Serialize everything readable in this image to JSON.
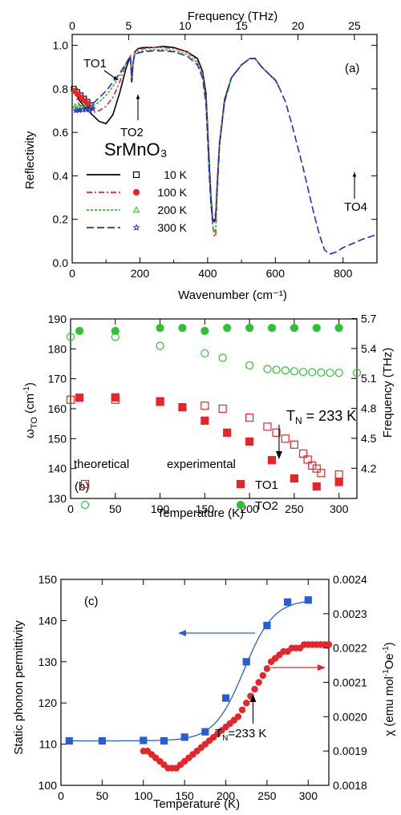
{
  "chart_data": [
    {
      "type": "line",
      "panel_label": "(a)",
      "xlabel": "Wavenumber (cm⁻¹)",
      "ylabel": "Reflectivity",
      "x2label": "Frequency (THz)",
      "xlim": [
        0,
        900
      ],
      "ylim": [
        0,
        1.05
      ],
      "x2lim": [
        0,
        27
      ],
      "xticks": [
        "0",
        "200",
        "400",
        "600",
        "800"
      ],
      "yticks": [
        "0.0",
        "0.2",
        "0.4",
        "0.6",
        "0.8",
        "1.0"
      ],
      "x2ticks": [
        "0",
        "5",
        "10",
        "15",
        "20",
        "25"
      ],
      "material": "SrMnO₃",
      "annotations": [
        "TO1",
        "TO2",
        "TO4"
      ],
      "legend_placement": "lower-left",
      "series": [
        {
          "name": "10 K",
          "color": "#000000",
          "marker": "open-square",
          "x": [
            5,
            20,
            40,
            60,
            80,
            100,
            120,
            140,
            160,
            172,
            176,
            180,
            185,
            195,
            210,
            240,
            270,
            300,
            340,
            370,
            385,
            395,
            400,
            405,
            410,
            415,
            420,
            424,
            428,
            435,
            450,
            470,
            500,
            525,
            540,
            560,
            580,
            600,
            610
          ],
          "y": [
            0.8,
            0.75,
            0.71,
            0.68,
            0.65,
            0.64,
            0.68,
            0.78,
            0.9,
            0.95,
            0.83,
            0.92,
            0.97,
            0.985,
            0.99,
            0.99,
            0.995,
            0.99,
            0.97,
            0.94,
            0.88,
            0.78,
            0.62,
            0.45,
            0.3,
            0.2,
            0.19,
            0.21,
            0.35,
            0.55,
            0.75,
            0.85,
            0.91,
            0.94,
            0.94,
            0.9,
            0.87,
            0.84,
            0.81
          ]
        },
        {
          "name": "100 K",
          "color": "#e8242a",
          "marker": "filled-circle",
          "x": [
            5,
            20,
            40,
            60,
            80,
            100,
            120,
            140,
            160,
            172,
            176,
            180,
            185,
            195,
            210,
            240,
            270,
            300,
            340,
            370,
            385,
            395,
            400,
            405,
            410,
            415,
            420,
            424,
            428,
            435,
            450,
            470,
            500,
            525,
            540,
            560,
            580,
            600,
            610
          ],
          "y": [
            0.79,
            0.73,
            0.7,
            0.69,
            0.7,
            0.72,
            0.76,
            0.83,
            0.92,
            0.95,
            0.85,
            0.92,
            0.97,
            0.98,
            0.985,
            0.99,
            0.99,
            0.985,
            0.97,
            0.93,
            0.87,
            0.76,
            0.6,
            0.43,
            0.28,
            0.18,
            0.12,
            0.13,
            0.3,
            0.53,
            0.74,
            0.85,
            0.91,
            0.94,
            0.94,
            0.9,
            0.87,
            0.84,
            0.81
          ]
        },
        {
          "name": "200 K",
          "color": "#2ec22e",
          "marker": "open-triangle",
          "x": [
            5,
            20,
            40,
            60,
            80,
            100,
            120,
            140,
            160,
            172,
            176,
            180,
            185,
            195,
            210,
            240,
            270,
            300,
            340,
            370,
            385,
            395,
            400,
            405,
            410,
            415,
            420,
            424,
            428,
            435,
            450,
            470,
            500,
            525,
            540,
            560,
            580,
            600,
            610
          ],
          "y": [
            0.72,
            0.71,
            0.71,
            0.72,
            0.74,
            0.77,
            0.81,
            0.86,
            0.92,
            0.95,
            0.85,
            0.92,
            0.96,
            0.97,
            0.975,
            0.98,
            0.98,
            0.975,
            0.96,
            0.92,
            0.86,
            0.74,
            0.58,
            0.4,
            0.26,
            0.17,
            0.14,
            0.16,
            0.32,
            0.54,
            0.74,
            0.85,
            0.91,
            0.94,
            0.94,
            0.9,
            0.87,
            0.84,
            0.81
          ]
        },
        {
          "name": "300 K",
          "color": "#2a2ad4",
          "marker": "open-star",
          "x": [
            5,
            20,
            40,
            60,
            80,
            100,
            120,
            140,
            160,
            172,
            176,
            180,
            185,
            195,
            210,
            240,
            270,
            300,
            340,
            370,
            385,
            395,
            400,
            405,
            410,
            415,
            420,
            424,
            428,
            435,
            450,
            470,
            500,
            525,
            540,
            560,
            580,
            600,
            610,
            630,
            650,
            680,
            710,
            730,
            745,
            760,
            780,
            800,
            830,
            860,
            900
          ],
          "y": [
            0.7,
            0.7,
            0.71,
            0.73,
            0.76,
            0.79,
            0.83,
            0.87,
            0.92,
            0.95,
            0.86,
            0.92,
            0.96,
            0.965,
            0.97,
            0.975,
            0.975,
            0.97,
            0.95,
            0.91,
            0.85,
            0.73,
            0.57,
            0.4,
            0.27,
            0.19,
            0.2,
            0.23,
            0.35,
            0.55,
            0.74,
            0.85,
            0.91,
            0.94,
            0.94,
            0.9,
            0.87,
            0.84,
            0.81,
            0.74,
            0.63,
            0.45,
            0.25,
            0.13,
            0.06,
            0.04,
            0.05,
            0.07,
            0.09,
            0.11,
            0.13
          ]
        }
      ]
    },
    {
      "type": "scatter",
      "panel_label": "(b)",
      "xlabel": "Temperature (K)",
      "ylabel": "ωTO (cm⁻¹)",
      "y2label": "Frequency (THz)",
      "xlim": [
        0,
        320
      ],
      "ylim": [
        130,
        190
      ],
      "xticks": [
        "0",
        "50",
        "100",
        "150",
        "200",
        "250",
        "300"
      ],
      "yticks": [
        "130",
        "140",
        "150",
        "160",
        "170",
        "180",
        "190"
      ],
      "y2ticks": [
        "4.2",
        "4.5",
        "4.8",
        "5.1",
        "5.4",
        "5.7"
      ],
      "annotation": "TN = 233 K",
      "legend_headers": [
        "theoretical",
        "experimental"
      ],
      "series": [
        {
          "name": "TO1",
          "kind": "experimental",
          "color": "#e8242a",
          "marker": "filled-square",
          "x": [
            10,
            50,
            100,
            125,
            150,
            175,
            200,
            225,
            250,
            275,
            300
          ],
          "y": [
            163.7,
            163.8,
            162.3,
            160.5,
            156,
            152,
            149,
            142.8,
            136.7,
            134,
            135.5
          ]
        },
        {
          "name": "TO2",
          "kind": "experimental",
          "color": "#2ec22e",
          "marker": "filled-circle",
          "x": [
            10,
            50,
            100,
            125,
            150,
            175,
            200,
            225,
            250,
            275,
            300
          ],
          "y": [
            186,
            186,
            187,
            187,
            186,
            187,
            187,
            187,
            187,
            187,
            187
          ]
        },
        {
          "name": "TO1",
          "kind": "theoretical",
          "color": "#e8242a",
          "marker": "open-square",
          "x": [
            0,
            50,
            100,
            150,
            170,
            200,
            220,
            230,
            240,
            250,
            260,
            265,
            270,
            275,
            280,
            300
          ],
          "y": [
            163,
            163,
            162.5,
            161,
            160,
            157,
            154,
            152,
            150,
            148,
            145,
            143,
            141,
            140,
            138.5,
            138
          ]
        },
        {
          "name": "TO2",
          "kind": "theoretical",
          "color": "#2ec22e",
          "marker": "open-circle",
          "x": [
            0,
            50,
            100,
            150,
            170,
            200,
            220,
            230,
            240,
            250,
            260,
            270,
            280,
            290,
            300,
            320
          ],
          "y": [
            184,
            184,
            181,
            178.5,
            177,
            174.5,
            173.3,
            173,
            172.8,
            172.5,
            172.3,
            172.2,
            172.1,
            172,
            172,
            172
          ]
        }
      ]
    },
    {
      "type": "scatter",
      "panel_label": "(c)",
      "xlabel": "Temperature (K)",
      "ylabel": "Static phonon permittivity",
      "y2label": "χ (emu mol⁻¹Oe⁻¹)",
      "xlim": [
        0,
        325
      ],
      "ylim": [
        100,
        150
      ],
      "y2lim": [
        0.0018,
        0.0024
      ],
      "xticks": [
        "0",
        "50",
        "100",
        "150",
        "200",
        "250",
        "300"
      ],
      "yticks": [
        "100",
        "110",
        "120",
        "130",
        "140",
        "150"
      ],
      "y2ticks": [
        "0.0018",
        "0.0019",
        "0.0020",
        "0.0021",
        "0.0022",
        "0.0023",
        "0.0024"
      ],
      "annotation": "TN=233 K",
      "series": [
        {
          "name": "permittivity",
          "axis": "left",
          "color": "#2a5cd6",
          "marker": "filled-square",
          "x": [
            10,
            50,
            100,
            125,
            150,
            175,
            200,
            225,
            250,
            275,
            300
          ],
          "y": [
            110.8,
            110.8,
            110.9,
            110.8,
            111.7,
            113,
            121.2,
            130,
            138.8,
            144.5,
            145
          ]
        },
        {
          "name": "susceptibility",
          "axis": "right",
          "color": "#e8242a",
          "marker": "filled-circle",
          "x": [
            100,
            105,
            110,
            115,
            120,
            125,
            130,
            135,
            140,
            145,
            150,
            155,
            160,
            165,
            170,
            175,
            180,
            185,
            190,
            195,
            200,
            205,
            210,
            215,
            220,
            225,
            230,
            235,
            240,
            245,
            250,
            255,
            260,
            265,
            270,
            275,
            280,
            285,
            290,
            295,
            300,
            305,
            310,
            315,
            320,
            325
          ],
          "y": [
            0.0019,
            0.0019,
            0.00189,
            0.00188,
            0.00187,
            0.00186,
            0.00185,
            0.00185,
            0.00185,
            0.00186,
            0.00187,
            0.00188,
            0.00189,
            0.0019,
            0.00191,
            0.00192,
            0.00193,
            0.00194,
            0.00195,
            0.00196,
            0.00197,
            0.00198,
            0.00199,
            0.002,
            0.00202,
            0.00204,
            0.00206,
            0.00208,
            0.0021,
            0.00212,
            0.00214,
            0.00216,
            0.00217,
            0.00218,
            0.00219,
            0.00219,
            0.0022,
            0.0022,
            0.0022,
            0.00221,
            0.00221,
            0.00221,
            0.00221,
            0.00221,
            0.00221,
            0.00221
          ]
        }
      ]
    }
  ]
}
